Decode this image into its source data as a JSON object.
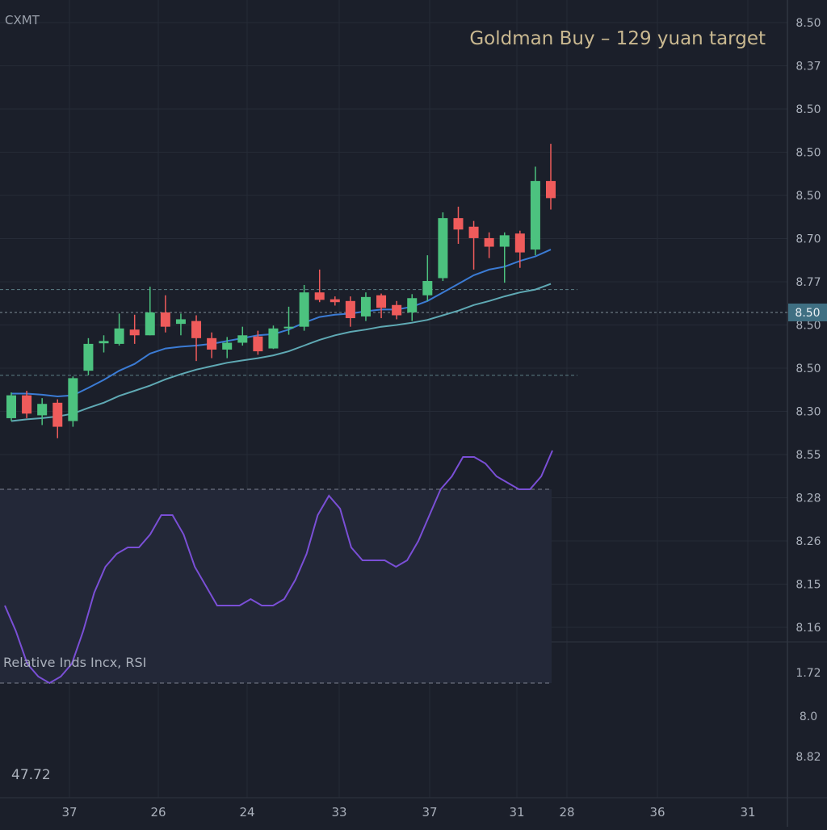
{
  "chart_data": {
    "type": "candlestick",
    "symbol": "CXMT",
    "annotation": "Goldman Buy – 129 yuan target",
    "x_tick_labels": [
      "37",
      "26",
      "24",
      "33",
      "37",
      "31",
      "28",
      "36",
      "31"
    ],
    "price_axis_labels": [
      "8.50",
      "8.37",
      "8.50",
      "8.50",
      "8.50",
      "8.70",
      "8.77",
      "8.50",
      "8.50",
      "8.30",
      "8.55",
      "8.28",
      "8.26",
      "8.15",
      "8.16"
    ],
    "current_price_label": "8.50",
    "candles": [
      {
        "open": 0.695,
        "close": 0.735,
        "high": 0.74,
        "low": 0.69
      },
      {
        "open": 0.735,
        "close": 0.703,
        "high": 0.743,
        "low": 0.695
      },
      {
        "open": 0.7,
        "close": 0.72,
        "high": 0.73,
        "low": 0.683
      },
      {
        "open": 0.722,
        "close": 0.68,
        "high": 0.728,
        "low": 0.66
      },
      {
        "open": 0.69,
        "close": 0.765,
        "high": 0.768,
        "low": 0.68
      },
      {
        "open": 0.778,
        "close": 0.825,
        "high": 0.835,
        "low": 0.77
      },
      {
        "open": 0.826,
        "close": 0.83,
        "high": 0.84,
        "low": 0.81
      },
      {
        "open": 0.825,
        "close": 0.852,
        "high": 0.878,
        "low": 0.822
      },
      {
        "open": 0.85,
        "close": 0.84,
        "high": 0.876,
        "low": 0.825
      },
      {
        "open": 0.84,
        "close": 0.88,
        "high": 0.925,
        "low": 0.84
      },
      {
        "open": 0.88,
        "close": 0.855,
        "high": 0.91,
        "low": 0.845
      },
      {
        "open": 0.86,
        "close": 0.868,
        "high": 0.878,
        "low": 0.84
      },
      {
        "open": 0.865,
        "close": 0.835,
        "high": 0.875,
        "low": 0.795
      },
      {
        "open": 0.835,
        "close": 0.815,
        "high": 0.845,
        "low": 0.8
      },
      {
        "open": 0.815,
        "close": 0.827,
        "high": 0.837,
        "low": 0.8
      },
      {
        "open": 0.827,
        "close": 0.84,
        "high": 0.855,
        "low": 0.822
      },
      {
        "open": 0.838,
        "close": 0.812,
        "high": 0.848,
        "low": 0.806
      },
      {
        "open": 0.817,
        "close": 0.852,
        "high": 0.857,
        "low": 0.816
      },
      {
        "open": 0.853,
        "close": 0.855,
        "high": 0.89,
        "low": 0.841
      },
      {
        "open": 0.855,
        "close": 0.915,
        "high": 0.928,
        "low": 0.848
      },
      {
        "open": 0.915,
        "close": 0.902,
        "high": 0.955,
        "low": 0.898
      },
      {
        "open": 0.903,
        "close": 0.898,
        "high": 0.908,
        "low": 0.892
      },
      {
        "open": 0.9,
        "close": 0.87,
        "high": 0.908,
        "low": 0.855
      },
      {
        "open": 0.873,
        "close": 0.907,
        "high": 0.915,
        "low": 0.865
      },
      {
        "open": 0.91,
        "close": 0.888,
        "high": 0.913,
        "low": 0.87
      },
      {
        "open": 0.893,
        "close": 0.875,
        "high": 0.9,
        "low": 0.868
      },
      {
        "open": 0.88,
        "close": 0.905,
        "high": 0.912,
        "low": 0.865
      },
      {
        "open": 0.91,
        "close": 0.935,
        "high": 0.98,
        "low": 0.9
      },
      {
        "open": 0.94,
        "close": 1.045,
        "high": 1.055,
        "low": 0.935
      },
      {
        "open": 1.045,
        "close": 1.025,
        "high": 1.065,
        "low": 1.0
      },
      {
        "open": 1.03,
        "close": 1.01,
        "high": 1.04,
        "low": 0.955
      },
      {
        "open": 1.01,
        "close": 0.995,
        "high": 1.02,
        "low": 0.975
      },
      {
        "open": 0.995,
        "close": 1.015,
        "high": 1.02,
        "low": 0.932
      },
      {
        "open": 1.018,
        "close": 0.985,
        "high": 1.023,
        "low": 0.958
      },
      {
        "open": 0.99,
        "close": 1.11,
        "high": 1.135,
        "low": 0.98
      },
      {
        "open": 1.11,
        "close": 1.08,
        "high": 1.175,
        "low": 1.06
      }
    ],
    "ma_fast": [
      0.738,
      0.738,
      0.736,
      0.733,
      0.735,
      0.748,
      0.762,
      0.778,
      0.79,
      0.808,
      0.817,
      0.82,
      0.822,
      0.825,
      0.83,
      0.835,
      0.84,
      0.842,
      0.85,
      0.862,
      0.872,
      0.876,
      0.878,
      0.882,
      0.885,
      0.885,
      0.89,
      0.9,
      0.915,
      0.93,
      0.945,
      0.955,
      0.96,
      0.97,
      0.978,
      0.99
    ],
    "ma_slow": [
      0.69,
      0.693,
      0.695,
      0.698,
      0.703,
      0.713,
      0.722,
      0.734,
      0.743,
      0.752,
      0.763,
      0.772,
      0.78,
      0.786,
      0.792,
      0.796,
      0.8,
      0.805,
      0.812,
      0.822,
      0.832,
      0.84,
      0.846,
      0.85,
      0.855,
      0.858,
      0.862,
      0.867,
      0.875,
      0.883,
      0.893,
      0.9,
      0.908,
      0.915,
      0.92,
      0.93
    ],
    "reference_lines": [
      0.92,
      0.77
    ],
    "current_level": 0.88,
    "rsi": {
      "label": "Relative Inds Incx, RSI",
      "axis_labels": [
        "1.72",
        "8.0",
        "8.82"
      ],
      "value_label": "47.72",
      "values": [
        52,
        48,
        43,
        41,
        40,
        41,
        43,
        48,
        54,
        58,
        60,
        61,
        61,
        63,
        66,
        66,
        63,
        58,
        55,
        52,
        52,
        52,
        53,
        52,
        52,
        53,
        56,
        60,
        66,
        69,
        67,
        61,
        59,
        59,
        59,
        58,
        59,
        62,
        66,
        70,
        72,
        75,
        75,
        74,
        72,
        71,
        70,
        70,
        72,
        76
      ],
      "bands": [
        70,
        40
      ]
    },
    "colors": {
      "up": "#4cc27f",
      "down": "#ef5b5b",
      "ma_fast": "#3b7bd4",
      "ma_slow": "#5fa9b4",
      "rsi": "#7a4fd6",
      "annotation": "#c9b890"
    }
  }
}
